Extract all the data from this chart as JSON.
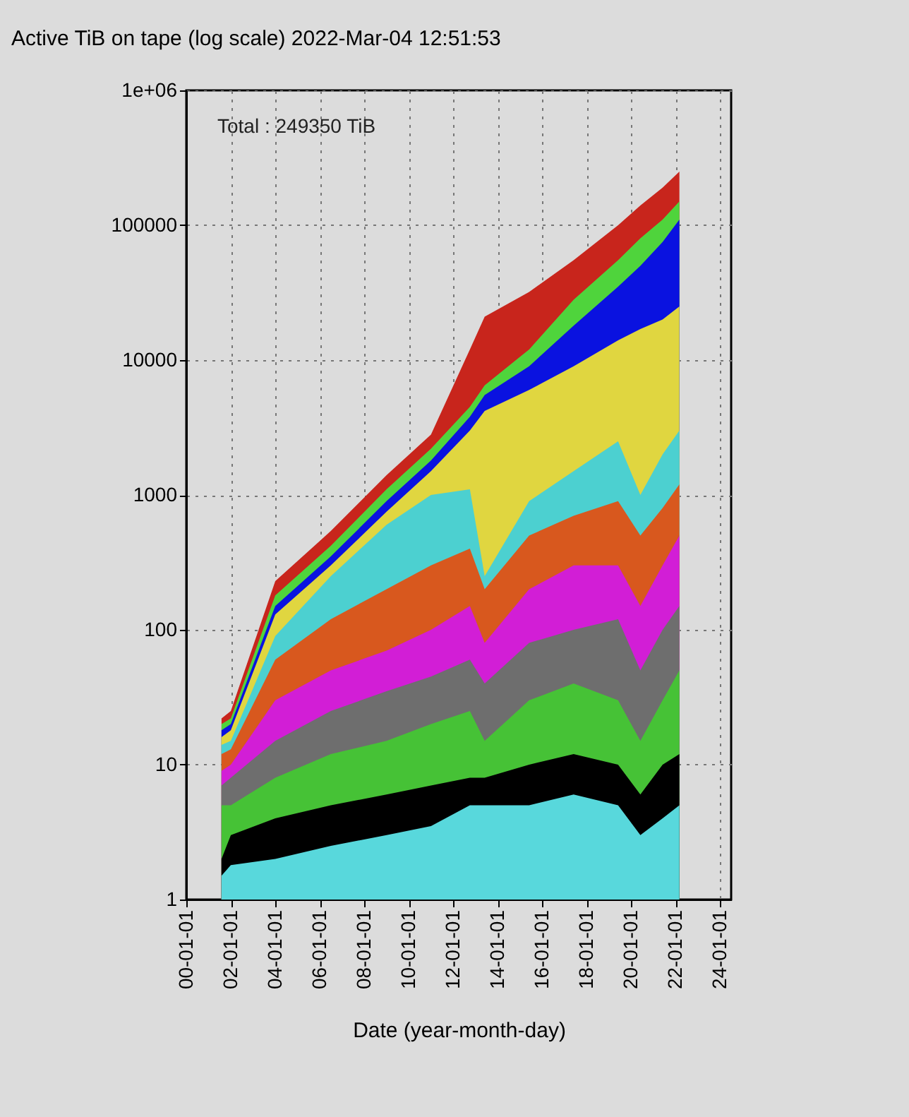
{
  "chart_data": {
    "type": "area",
    "title": "Active TiB on tape (log scale) 2022-Mar-04 12:51:53",
    "xlabel": "Date (year-month-day)",
    "annotations": [
      "Total   : 249350 TiB"
    ],
    "x": [
      "2001-08-01",
      "2002-01-01",
      "2004-01-01",
      "2006-07-01",
      "2009-01-01",
      "2011-01-01",
      "2012-10-01",
      "2013-06-01",
      "2015-06-01",
      "2017-06-01",
      "2019-06-01",
      "2020-06-01",
      "2021-06-01",
      "2022-03-04"
    ],
    "series": [
      {
        "color": "#c8251c",
        "values": [
          22,
          25,
          230,
          540,
          1400,
          2800,
          12000,
          21000,
          32000,
          55000,
          100000,
          140000,
          190000,
          250000
        ]
      },
      {
        "color": "#4fd43c",
        "values": [
          20,
          22,
          180,
          420,
          1100,
          2200,
          4500,
          6500,
          12000,
          28000,
          55000,
          80000,
          110000,
          150000
        ]
      },
      {
        "color": "#0a12e0",
        "values": [
          18,
          20,
          150,
          350,
          900,
          1800,
          3800,
          5500,
          9000,
          18000,
          35000,
          50000,
          75000,
          110000
        ]
      },
      {
        "color": "#e0d640",
        "values": [
          16,
          18,
          130,
          300,
          750,
          1500,
          3000,
          4200,
          6000,
          9000,
          14000,
          17000,
          20000,
          25000
        ]
      },
      {
        "color": "#4cd0d0",
        "values": [
          14,
          15,
          90,
          250,
          600,
          1000,
          1100,
          250,
          900,
          1500,
          2500,
          1000,
          2000,
          3000
        ]
      },
      {
        "color": "#d8581e",
        "values": [
          12,
          13,
          60,
          120,
          200,
          300,
          400,
          200,
          500,
          700,
          900,
          500,
          800,
          1200
        ]
      },
      {
        "color": "#d21ed6",
        "values": [
          9,
          10,
          30,
          50,
          70,
          100,
          150,
          80,
          200,
          300,
          300,
          150,
          300,
          500
        ]
      },
      {
        "color": "#6e6e6e",
        "values": [
          7,
          8,
          15,
          25,
          35,
          45,
          60,
          40,
          80,
          100,
          120,
          50,
          100,
          150
        ]
      },
      {
        "color": "#46c236",
        "values": [
          5,
          5,
          8,
          12,
          15,
          20,
          25,
          15,
          30,
          40,
          30,
          15,
          30,
          50
        ]
      },
      {
        "color": "#000000",
        "values": [
          2,
          3,
          4,
          5,
          6,
          7,
          8,
          8,
          10,
          12,
          10,
          6,
          10,
          12
        ]
      },
      {
        "color": "#58d8dc",
        "values": [
          1.5,
          1.8,
          2,
          2.5,
          3,
          3.5,
          5,
          5,
          5,
          6,
          5,
          3,
          4,
          5
        ]
      }
    ],
    "xlim": [
      "2000-01-01",
      "2024-07-01"
    ],
    "xticks": [
      {
        "value": "2000-01-01",
        "label": "00-01-01"
      },
      {
        "value": "2002-01-01",
        "label": "02-01-01"
      },
      {
        "value": "2004-01-01",
        "label": "04-01-01"
      },
      {
        "value": "2006-01-01",
        "label": "06-01-01"
      },
      {
        "value": "2008-01-01",
        "label": "08-01-01"
      },
      {
        "value": "2010-01-01",
        "label": "10-01-01"
      },
      {
        "value": "2012-01-01",
        "label": "12-01-01"
      },
      {
        "value": "2014-01-01",
        "label": "14-01-01"
      },
      {
        "value": "2016-01-01",
        "label": "16-01-01"
      },
      {
        "value": "2018-01-01",
        "label": "18-01-01"
      },
      {
        "value": "2020-01-01",
        "label": "20-01-01"
      },
      {
        "value": "2022-01-01",
        "label": "22-01-01"
      },
      {
        "value": "2024-01-01",
        "label": "24-01-01"
      }
    ],
    "ylim": [
      1,
      1000000
    ],
    "yticks": [
      1,
      10,
      100,
      1000,
      10000,
      100000,
      {
        "value": 1000000,
        "label": "1e+06"
      }
    ],
    "log": true,
    "grid": true
  }
}
